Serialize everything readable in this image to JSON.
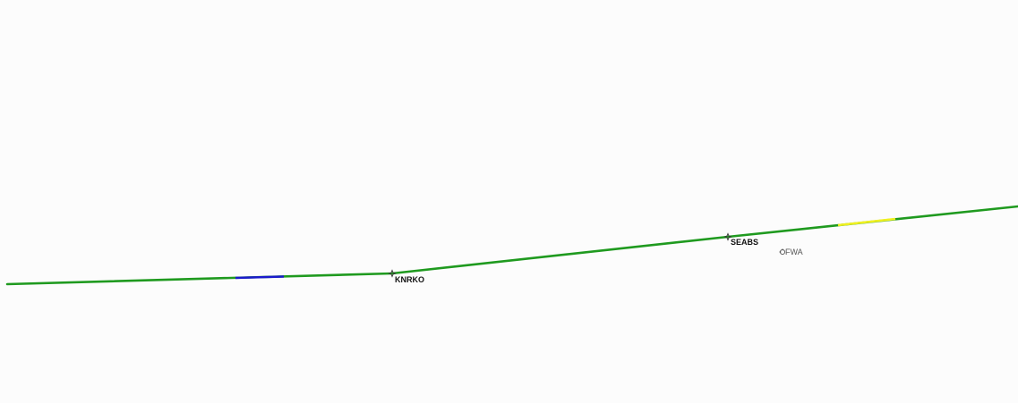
{
  "map": {
    "colors": {
      "route": "#1f9a1f",
      "segment_blue": "#1a1acc",
      "segment_yellow": "#f0f020",
      "waypoint_symbol": "#333333",
      "navaid_symbol": "#555555",
      "background": "#fcfcfc"
    },
    "waypoints": [
      {
        "name": "KNRKO",
        "icon": "waypoint-star-icon"
      },
      {
        "name": "SEABS",
        "icon": "waypoint-star-icon"
      }
    ],
    "navaids": [
      {
        "name": "FWA",
        "icon": "navaid-vor-icon"
      }
    ]
  }
}
